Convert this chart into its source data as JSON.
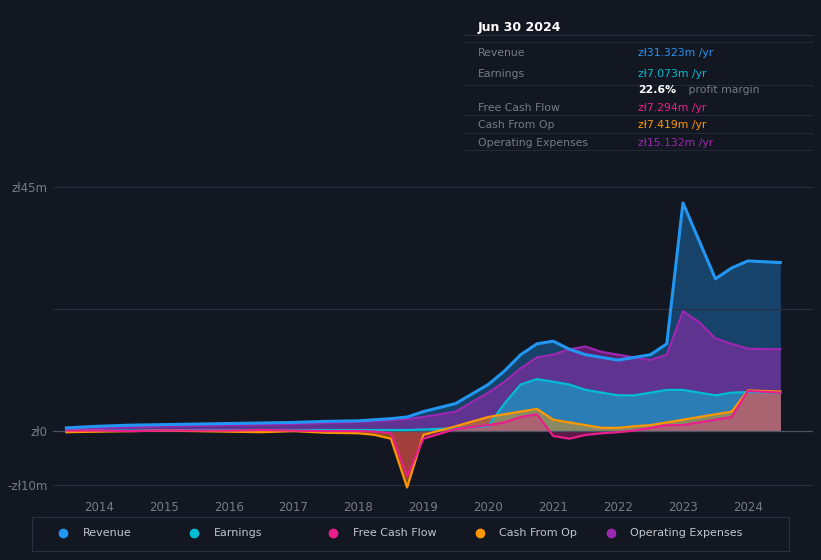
{
  "bg_color": "#131722",
  "plot_bg_color": "#131722",
  "grid_color": "#2a3040",
  "text_color": "#787b86",
  "ylim": [
    -12,
    50
  ],
  "xlim": [
    2013.3,
    2025.0
  ],
  "xtick_vals": [
    2014,
    2015,
    2016,
    2017,
    2018,
    2019,
    2020,
    2021,
    2022,
    2023,
    2024
  ],
  "ytick_vals": [
    -10,
    0,
    45
  ],
  "ytick_labels": [
    "-zł10m",
    "zł0",
    "zł45m"
  ],
  "legend_items": [
    "Revenue",
    "Earnings",
    "Free Cash Flow",
    "Cash From Op",
    "Operating Expenses"
  ],
  "legend_colors": [
    "#2196f3",
    "#00bcd4",
    "#e91e8c",
    "#ff9800",
    "#9c27b0"
  ],
  "info_box_title": "Jun 30 2024",
  "info_rows": [
    {
      "label": "Revenue",
      "value": "zł31.323m /yr",
      "value_color": "#2196f3"
    },
    {
      "label": "Earnings",
      "value": "zł7.073m /yr",
      "value_color": "#00bcd4"
    },
    {
      "label": "",
      "value": "22.6% profit margin",
      "value_color": "#ffffff",
      "has_bold": true
    },
    {
      "label": "Free Cash Flow",
      "value": "zł7.294m /yr",
      "value_color": "#e91e8c"
    },
    {
      "label": "Cash From Op",
      "value": "zł7.419m /yr",
      "value_color": "#ff9800"
    },
    {
      "label": "Operating Expenses",
      "value": "zł15.132m /yr",
      "value_color": "#9c27b0"
    }
  ],
  "years": [
    2013.5,
    2014.0,
    2014.5,
    2015.0,
    2015.5,
    2016.0,
    2016.5,
    2017.0,
    2017.5,
    2018.0,
    2018.25,
    2018.5,
    2018.75,
    2019.0,
    2019.5,
    2020.0,
    2020.25,
    2020.5,
    2020.75,
    2021.0,
    2021.25,
    2021.5,
    2021.75,
    2022.0,
    2022.25,
    2022.5,
    2022.75,
    2023.0,
    2023.25,
    2023.5,
    2023.75,
    2024.0,
    2024.5
  ],
  "revenue": [
    0.5,
    0.8,
    1.0,
    1.1,
    1.2,
    1.3,
    1.4,
    1.5,
    1.7,
    1.8,
    2.0,
    2.2,
    2.5,
    3.5,
    5.0,
    8.5,
    11.0,
    14.0,
    16.0,
    16.5,
    15.0,
    14.0,
    13.5,
    13.0,
    13.5,
    14.0,
    16.0,
    42.0,
    35.0,
    28.0,
    30.0,
    31.3,
    31.0
  ],
  "earnings": [
    0.0,
    0.0,
    0.0,
    0.0,
    0.1,
    0.1,
    0.1,
    0.1,
    0.1,
    0.1,
    0.1,
    0.1,
    0.1,
    0.2,
    0.4,
    0.8,
    5.0,
    8.5,
    9.5,
    9.0,
    8.5,
    7.5,
    7.0,
    6.5,
    6.5,
    7.0,
    7.5,
    7.5,
    7.0,
    6.5,
    7.0,
    7.1,
    7.0
  ],
  "free_cash": [
    0.0,
    0.0,
    -0.1,
    0.0,
    0.0,
    0.0,
    0.1,
    0.0,
    -0.1,
    -0.1,
    -0.2,
    -0.5,
    -8.5,
    -1.5,
    0.3,
    1.0,
    1.5,
    2.5,
    3.0,
    -1.0,
    -1.5,
    -0.8,
    -0.5,
    -0.3,
    0.0,
    0.5,
    1.0,
    1.0,
    1.5,
    2.0,
    2.5,
    7.3,
    7.0
  ],
  "cash_from_op": [
    -0.3,
    -0.2,
    -0.1,
    0.0,
    -0.1,
    -0.2,
    -0.3,
    -0.1,
    -0.4,
    -0.5,
    -0.8,
    -1.5,
    -10.5,
    -0.8,
    0.8,
    2.5,
    3.0,
    3.5,
    4.0,
    2.0,
    1.5,
    1.0,
    0.5,
    0.5,
    0.8,
    1.0,
    1.5,
    2.0,
    2.5,
    3.0,
    3.5,
    7.4,
    7.2
  ],
  "op_expenses": [
    0.3,
    0.5,
    0.6,
    0.8,
    0.9,
    1.0,
    1.1,
    1.2,
    1.4,
    1.6,
    1.7,
    1.9,
    2.1,
    2.5,
    3.5,
    7.0,
    9.0,
    11.5,
    13.5,
    14.0,
    15.0,
    15.5,
    14.5,
    14.0,
    13.5,
    13.0,
    14.0,
    22.0,
    20.0,
    17.0,
    16.0,
    15.1,
    15.0
  ]
}
